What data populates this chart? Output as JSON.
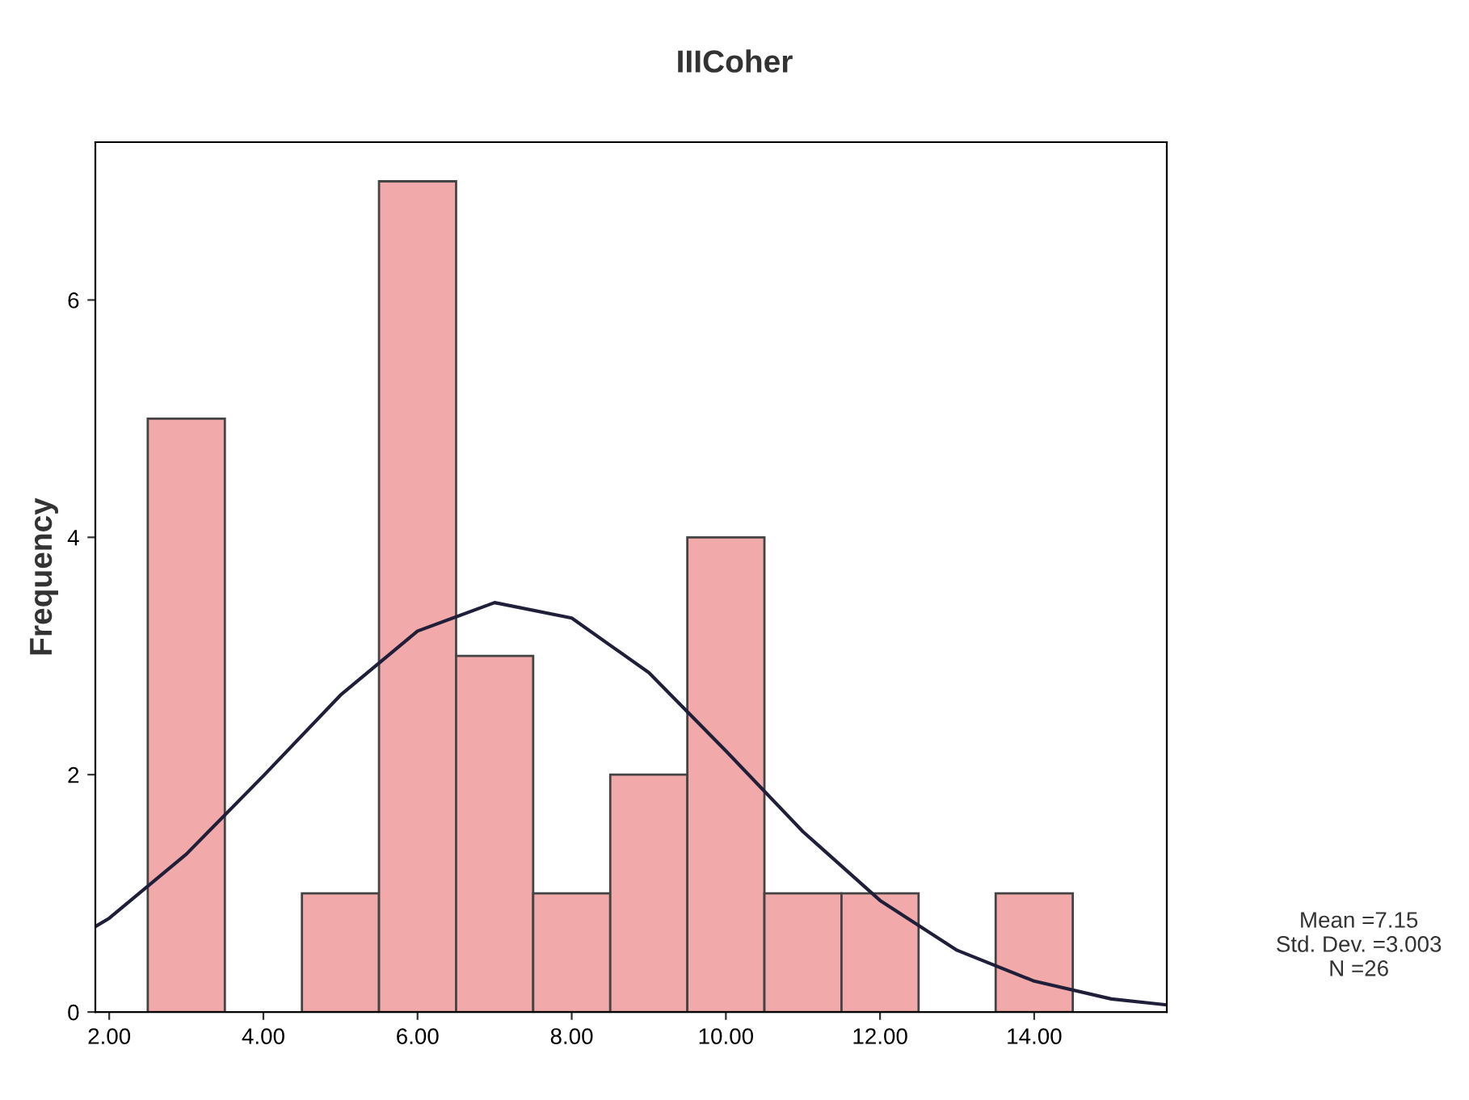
{
  "chart_data": {
    "type": "histogram",
    "title": "IIICoher",
    "ylabel": "Frequency",
    "bins": [
      2.5,
      3.5,
      4.5,
      5.5,
      6.5,
      7.5,
      8.5,
      9.5,
      10.5,
      11.5,
      12.5,
      13.5,
      14.5
    ],
    "values": [
      5,
      0,
      1,
      7,
      3,
      1,
      2,
      4,
      1,
      1,
      0,
      1
    ],
    "color": "#f2a9a9",
    "series": [
      {
        "type": "line",
        "color": "#1f1f3a",
        "x": [
          1.82,
          2,
          3,
          4,
          5,
          6,
          7,
          8,
          9,
          10,
          11,
          12,
          13,
          14,
          15,
          15.72
        ],
        "values": [
          0.72,
          0.79,
          1.33,
          1.99,
          2.67,
          3.21,
          3.45,
          3.32,
          2.86,
          2.2,
          1.52,
          0.94,
          0.52,
          0.26,
          0.11,
          0.06
        ]
      }
    ],
    "xlim": [
      1.82,
      15.72
    ],
    "ylim": [
      0,
      7.33
    ],
    "xticks": [
      {
        "value": 2,
        "label": "2.00"
      },
      {
        "value": 4,
        "label": "4.00"
      },
      {
        "value": 6,
        "label": "6.00"
      },
      {
        "value": 8,
        "label": "8.00"
      },
      {
        "value": 10,
        "label": "10.00"
      },
      {
        "value": 12,
        "label": "12.00"
      },
      {
        "value": 14,
        "label": "14.00"
      }
    ],
    "yticks": [
      0,
      2,
      4,
      6
    ],
    "annotations": [
      "Mean =7.15\nStd. Dev. =3.003\nN =26"
    ],
    "grid": false,
    "legend": false
  }
}
